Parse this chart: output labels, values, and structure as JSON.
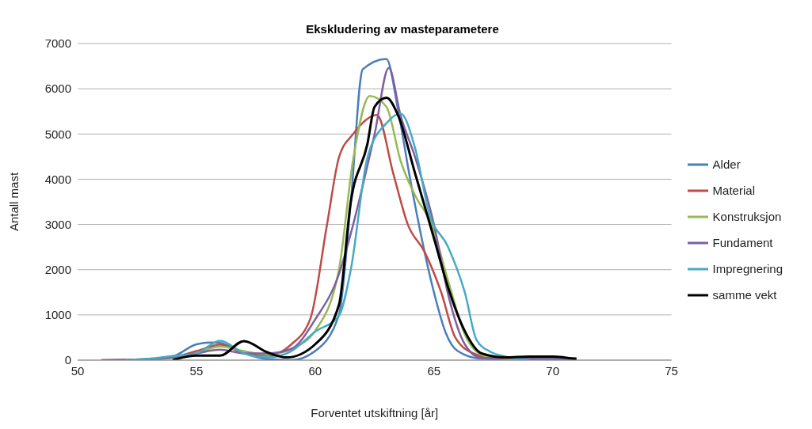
{
  "chart_data": {
    "type": "line",
    "title": "Ekskludering av masteparametere",
    "xlabel": "Forventet utskiftning [år]",
    "ylabel": "Antall mast",
    "xlim": [
      50,
      75
    ],
    "xticks": [
      50,
      55,
      60,
      65,
      70,
      75
    ],
    "ylim": [
      0,
      7000
    ],
    "yticks": [
      0,
      1000,
      2000,
      3000,
      4000,
      5000,
      6000,
      7000
    ],
    "grid": "y",
    "legend": "right",
    "marker": "none",
    "line_style": "solid",
    "series": [
      {
        "name": "Alder",
        "color": "#4a7ebb",
        "x": [
          52,
          53,
          54,
          55,
          55.6,
          56,
          57,
          58,
          59,
          60,
          61,
          61.5,
          62,
          63,
          63.5,
          64,
          65,
          65.5,
          66,
          67,
          68,
          70,
          71
        ],
        "values": [
          0,
          20,
          80,
          350,
          390,
          380,
          150,
          20,
          0,
          200,
          1000,
          3500,
          6430,
          6660,
          5500,
          4000,
          1500,
          600,
          200,
          30,
          20,
          20,
          20
        ]
      },
      {
        "name": "Material",
        "color": "#be4b48",
        "x": [
          51,
          53,
          54,
          55,
          56,
          57,
          58,
          59,
          59.8,
          60.5,
          61,
          61.6,
          62.6,
          63.3,
          63.9,
          64.6,
          65.3,
          65.9,
          66.7,
          67.5,
          68
        ],
        "values": [
          0,
          20,
          60,
          200,
          340,
          150,
          100,
          350,
          920,
          3000,
          4480,
          5000,
          5420,
          4100,
          3000,
          2400,
          1510,
          500,
          140,
          50,
          50
        ]
      },
      {
        "name": "Konstruksjon",
        "color": "#98b954",
        "x": [
          52,
          53,
          54,
          55,
          56,
          57,
          58,
          59,
          60,
          61,
          61.6,
          62.3,
          63,
          63.6,
          64.2,
          64.9,
          65.6,
          66.3,
          67.1,
          68,
          69
        ],
        "values": [
          0,
          20,
          50,
          150,
          300,
          200,
          120,
          250,
          650,
          2000,
          4440,
          5840,
          5600,
          4400,
          3650,
          3000,
          1750,
          570,
          100,
          30,
          0
        ]
      },
      {
        "name": "Fundament",
        "color": "#7d60a0",
        "x": [
          51,
          53,
          54,
          55,
          56,
          57,
          58,
          59,
          60,
          61,
          61.6,
          62.2,
          62.5,
          63.1,
          63.6,
          64.2,
          65,
          65.6,
          66.3,
          67,
          68,
          70,
          71
        ],
        "values": [
          0,
          20,
          60,
          150,
          230,
          150,
          150,
          250,
          900,
          1900,
          3000,
          4300,
          4990,
          6460,
          5400,
          4500,
          3000,
          1450,
          350,
          50,
          50,
          50,
          50
        ]
      },
      {
        "name": "Impregnering",
        "color": "#46aac5",
        "x": [
          52,
          53,
          54,
          55,
          56,
          57,
          58,
          59,
          60,
          61,
          61.5,
          62.2,
          63,
          63.6,
          64.2,
          64.8,
          65.6,
          66.3,
          66.8,
          67.4,
          68,
          69
        ],
        "values": [
          0,
          30,
          90,
          150,
          430,
          150,
          60,
          200,
          630,
          980,
          2000,
          4480,
          5240,
          5450,
          4700,
          3250,
          2500,
          1500,
          440,
          180,
          80,
          0
        ]
      },
      {
        "name": "samme vekt",
        "color": "#000000",
        "x": [
          54,
          55,
          56,
          57,
          58,
          58.8,
          60,
          61,
          61.5,
          62.2,
          62.5,
          63,
          63.5,
          64.2,
          65,
          65.6,
          66.3,
          67,
          68,
          69,
          70,
          71
        ],
        "values": [
          0,
          100,
          100,
          420,
          170,
          60,
          350,
          1220,
          3500,
          4780,
          5600,
          5800,
          5400,
          4140,
          2700,
          1600,
          640,
          150,
          60,
          80,
          80,
          20
        ]
      }
    ]
  }
}
